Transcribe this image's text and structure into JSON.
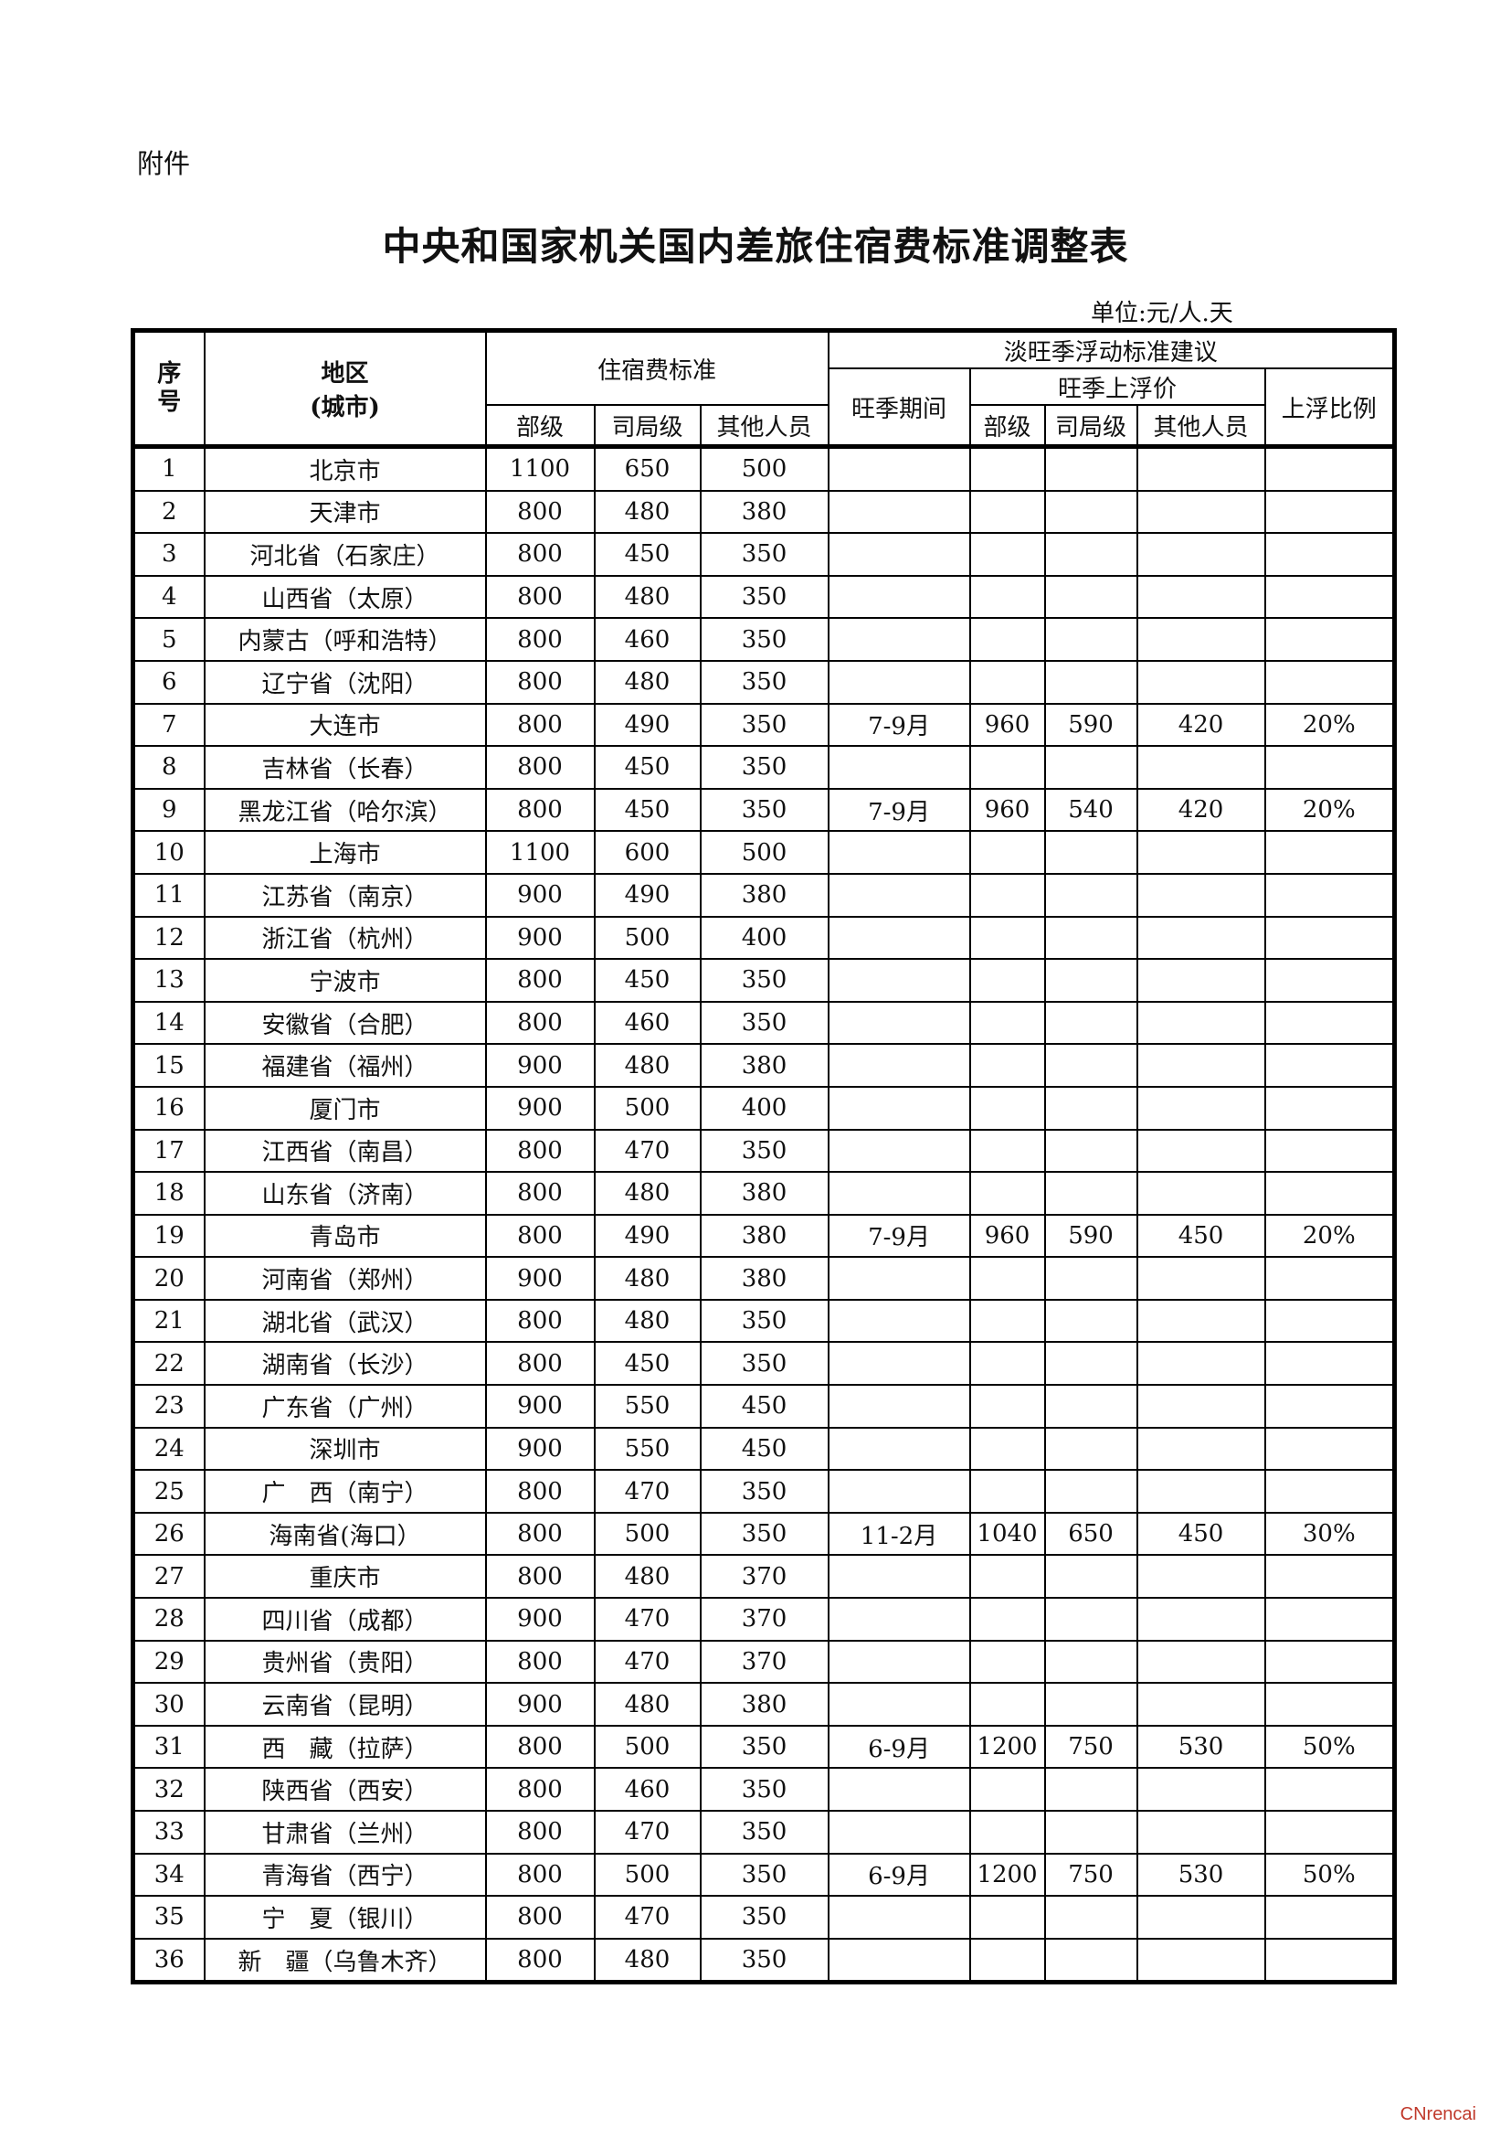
{
  "attachment_label": "附件",
  "title": "中央和国家机关国内差旅住宿费标准调整表",
  "unit": "单位:元/人.天",
  "header": {
    "seq": "序号",
    "region": "地区",
    "region_sub": "(城市)",
    "standard": "住宿费标准",
    "season": "淡旺季浮动标准建议",
    "peak_period": "旺季期间",
    "peak_price": "旺季上浮价",
    "ratio": "上浮比例",
    "ministerial": "部级",
    "bureau": "司局级",
    "others": "其他人员"
  },
  "columns": [
    "seq",
    "region",
    "ministerial",
    "bureau",
    "others",
    "peak_period",
    "peak_ministerial",
    "peak_bureau",
    "peak_others",
    "ratio"
  ],
  "rows": [
    [
      "1",
      "北京市",
      "1100",
      "650",
      "500",
      "",
      "",
      "",
      "",
      ""
    ],
    [
      "2",
      "天津市",
      "800",
      "480",
      "380",
      "",
      "",
      "",
      "",
      ""
    ],
    [
      "3",
      "河北省（石家庄）",
      "800",
      "450",
      "350",
      "",
      "",
      "",
      "",
      ""
    ],
    [
      "4",
      "山西省（太原）",
      "800",
      "480",
      "350",
      "",
      "",
      "",
      "",
      ""
    ],
    [
      "5",
      "内蒙古（呼和浩特）",
      "800",
      "460",
      "350",
      "",
      "",
      "",
      "",
      ""
    ],
    [
      "6",
      "辽宁省（沈阳）",
      "800",
      "480",
      "350",
      "",
      "",
      "",
      "",
      ""
    ],
    [
      "7",
      "大连市",
      "800",
      "490",
      "350",
      "7-9月",
      "960",
      "590",
      "420",
      "20%"
    ],
    [
      "8",
      "吉林省（长春）",
      "800",
      "450",
      "350",
      "",
      "",
      "",
      "",
      ""
    ],
    [
      "9",
      "黑龙江省（哈尔滨）",
      "800",
      "450",
      "350",
      "7-9月",
      "960",
      "540",
      "420",
      "20%"
    ],
    [
      "10",
      "上海市",
      "1100",
      "600",
      "500",
      "",
      "",
      "",
      "",
      ""
    ],
    [
      "11",
      "江苏省（南京）",
      "900",
      "490",
      "380",
      "",
      "",
      "",
      "",
      ""
    ],
    [
      "12",
      "浙江省（杭州）",
      "900",
      "500",
      "400",
      "",
      "",
      "",
      "",
      ""
    ],
    [
      "13",
      "宁波市",
      "800",
      "450",
      "350",
      "",
      "",
      "",
      "",
      ""
    ],
    [
      "14",
      "安徽省（合肥）",
      "800",
      "460",
      "350",
      "",
      "",
      "",
      "",
      ""
    ],
    [
      "15",
      "福建省（福州）",
      "900",
      "480",
      "380",
      "",
      "",
      "",
      "",
      ""
    ],
    [
      "16",
      "厦门市",
      "900",
      "500",
      "400",
      "",
      "",
      "",
      "",
      ""
    ],
    [
      "17",
      "江西省（南昌）",
      "800",
      "470",
      "350",
      "",
      "",
      "",
      "",
      ""
    ],
    [
      "18",
      "山东省（济南）",
      "800",
      "480",
      "380",
      "",
      "",
      "",
      "",
      ""
    ],
    [
      "19",
      "青岛市",
      "800",
      "490",
      "380",
      "7-9月",
      "960",
      "590",
      "450",
      "20%"
    ],
    [
      "20",
      "河南省（郑州）",
      "900",
      "480",
      "380",
      "",
      "",
      "",
      "",
      ""
    ],
    [
      "21",
      "湖北省（武汉）",
      "800",
      "480",
      "350",
      "",
      "",
      "",
      "",
      ""
    ],
    [
      "22",
      "湖南省（长沙）",
      "800",
      "450",
      "350",
      "",
      "",
      "",
      "",
      ""
    ],
    [
      "23",
      "广东省（广州）",
      "900",
      "550",
      "450",
      "",
      "",
      "",
      "",
      ""
    ],
    [
      "24",
      "深圳市",
      "900",
      "550",
      "450",
      "",
      "",
      "",
      "",
      ""
    ],
    [
      "25",
      "广　西（南宁）",
      "800",
      "470",
      "350",
      "",
      "",
      "",
      "",
      ""
    ],
    [
      "26",
      "海南省(海口）",
      "800",
      "500",
      "350",
      "11-2月",
      "1040",
      "650",
      "450",
      "30%"
    ],
    [
      "27",
      "重庆市",
      "800",
      "480",
      "370",
      "",
      "",
      "",
      "",
      ""
    ],
    [
      "28",
      "四川省（成都）",
      "900",
      "470",
      "370",
      "",
      "",
      "",
      "",
      ""
    ],
    [
      "29",
      "贵州省（贵阳）",
      "800",
      "470",
      "370",
      "",
      "",
      "",
      "",
      ""
    ],
    [
      "30",
      "云南省（昆明）",
      "900",
      "480",
      "380",
      "",
      "",
      "",
      "",
      ""
    ],
    [
      "31",
      "西　藏（拉萨）",
      "800",
      "500",
      "350",
      "6-9月",
      "1200",
      "750",
      "530",
      "50%"
    ],
    [
      "32",
      "陕西省（西安）",
      "800",
      "460",
      "350",
      "",
      "",
      "",
      "",
      ""
    ],
    [
      "33",
      "甘肃省（兰州）",
      "800",
      "470",
      "350",
      "",
      "",
      "",
      "",
      ""
    ],
    [
      "34",
      "青海省（西宁）",
      "800",
      "500",
      "350",
      "6-9月",
      "1200",
      "750",
      "530",
      "50%"
    ],
    [
      "35",
      "宁　夏（银川）",
      "800",
      "470",
      "350",
      "",
      "",
      "",
      "",
      ""
    ],
    [
      "36",
      "新　疆（乌鲁木齐）",
      "800",
      "480",
      "350",
      "",
      "",
      "",
      "",
      ""
    ]
  ],
  "watermark": "CNrencai"
}
